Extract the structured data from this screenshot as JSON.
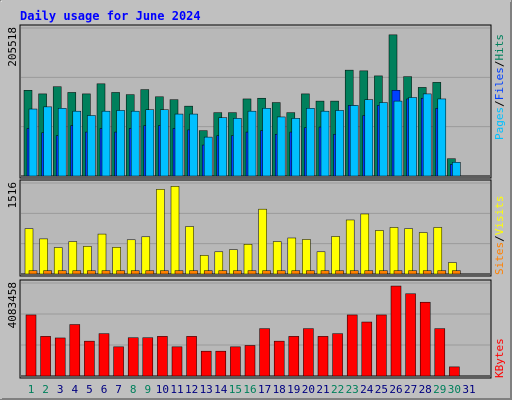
{
  "title": "Daily usage for June 2024",
  "colors": {
    "background": "#c0c0c0",
    "panel": "#b8b8b8",
    "title": "#0000ff",
    "hits": "#00805c",
    "files": "#0040ff",
    "pages": "#00c0ff",
    "visits": "#ffff00",
    "sites": "#ff8000",
    "kbytes": "#ff0000",
    "weekend_day": "#00805c",
    "weekday": "#000080"
  },
  "chart_data": [
    {
      "type": "bar",
      "name": "hits-files-pages",
      "panel_max_label": "205518",
      "legend": [
        "Pages",
        "/",
        "Files",
        "/",
        "Hits"
      ],
      "categories": [
        1,
        2,
        3,
        4,
        5,
        6,
        7,
        8,
        9,
        10,
        11,
        12,
        13,
        14,
        15,
        16,
        17,
        18,
        19,
        20,
        21,
        22,
        23,
        24,
        25,
        26,
        27,
        28,
        29,
        30,
        31
      ],
      "ylim": [
        0,
        205518
      ],
      "series": [
        {
          "name": "Hits",
          "values": [
            119000,
            114000,
            124000,
            116000,
            114000,
            128000,
            116000,
            113000,
            120000,
            110000,
            106000,
            97000,
            63000,
            88000,
            88000,
            107000,
            108000,
            102000,
            88000,
            114000,
            104000,
            104000,
            147000,
            146000,
            139000,
            196000,
            138000,
            123000,
            130000,
            24000,
            0
          ]
        },
        {
          "name": "Files",
          "values": [
            66000,
            60000,
            56000,
            70000,
            61000,
            66000,
            61000,
            66000,
            70000,
            70000,
            66000,
            64000,
            43000,
            56000,
            56000,
            61000,
            63000,
            58000,
            61000,
            67000,
            68000,
            58000,
            98000,
            84000,
            98000,
            119000,
            107000,
            108000,
            94000,
            16000,
            0
          ]
        },
        {
          "name": "Pages",
          "values": [
            93000,
            96000,
            94000,
            90000,
            84000,
            90000,
            91000,
            90000,
            92000,
            92000,
            86000,
            86000,
            54000,
            81000,
            80000,
            90000,
            94000,
            82000,
            80000,
            94000,
            90000,
            91000,
            98000,
            106000,
            102000,
            104000,
            109000,
            114000,
            107000,
            19000,
            0
          ]
        }
      ]
    },
    {
      "type": "bar",
      "name": "visits-sites",
      "panel_max_label": "1516",
      "legend": [
        "Sites",
        "/",
        "Visits"
      ],
      "categories": [
        1,
        2,
        3,
        4,
        5,
        6,
        7,
        8,
        9,
        10,
        11,
        12,
        13,
        14,
        15,
        16,
        17,
        18,
        19,
        20,
        21,
        22,
        23,
        24,
        25,
        26,
        27,
        28,
        29,
        30,
        31
      ],
      "ylim": [
        0,
        1516
      ],
      "series": [
        {
          "name": "Visits",
          "values": [
            755,
            585,
            440,
            540,
            460,
            665,
            445,
            570,
            620,
            1410,
            1460,
            790,
            310,
            370,
            405,
            495,
            1080,
            540,
            600,
            575,
            370,
            625,
            900,
            1000,
            725,
            775,
            755,
            690,
            775,
            190,
            0
          ]
        },
        {
          "name": "Sites",
          "values": [
            55,
            55,
            55,
            55,
            55,
            55,
            55,
            55,
            55,
            55,
            55,
            55,
            55,
            55,
            55,
            55,
            55,
            55,
            55,
            55,
            55,
            55,
            55,
            55,
            55,
            55,
            55,
            55,
            55,
            55,
            0
          ]
        }
      ]
    },
    {
      "type": "bar",
      "name": "kbytes",
      "panel_max_label": "4083458",
      "legend": [
        "KBytes"
      ],
      "categories": [
        1,
        2,
        3,
        4,
        5,
        6,
        7,
        8,
        9,
        10,
        11,
        12,
        13,
        14,
        15,
        16,
        17,
        18,
        19,
        20,
        21,
        22,
        23,
        24,
        25,
        26,
        27,
        28,
        29,
        30,
        31
      ],
      "ylim": [
        0,
        4083458
      ],
      "series": [
        {
          "name": "KBytes",
          "values": [
            2680000,
            1740000,
            1670000,
            2260000,
            1530000,
            1860000,
            1280000,
            1680000,
            1680000,
            1740000,
            1280000,
            1740000,
            1090000,
            1090000,
            1280000,
            1340000,
            2080000,
            1530000,
            1740000,
            2080000,
            1740000,
            1860000,
            2680000,
            2370000,
            2680000,
            3950000,
            3610000,
            3240000,
            2080000,
            400000,
            0
          ]
        }
      ]
    }
  ],
  "day_labels": [
    "1",
    "2",
    "3",
    "4",
    "5",
    "6",
    "7",
    "8",
    "9",
    "10",
    "11",
    "12",
    "13",
    "14",
    "15",
    "16",
    "17",
    "18",
    "19",
    "20",
    "21",
    "22",
    "23",
    "24",
    "25",
    "26",
    "27",
    "28",
    "29",
    "30",
    "31"
  ],
  "weekend_days": [
    1,
    2,
    8,
    9,
    15,
    16,
    22,
    23,
    29,
    30
  ]
}
